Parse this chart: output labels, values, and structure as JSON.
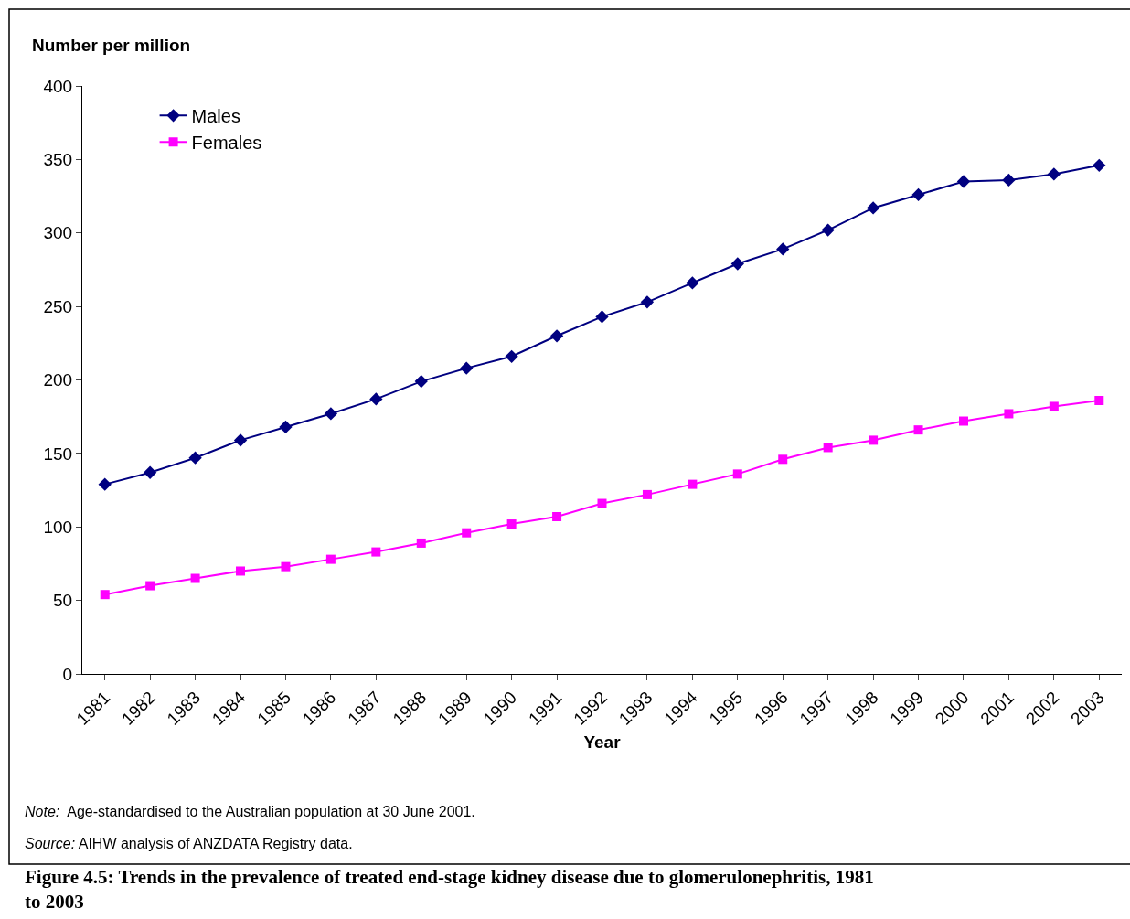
{
  "chart_data": {
    "type": "line",
    "title": "Figure 4.5: Trends in the prevalence of treated end-stage kidney disease due to glomerulonephritis, 1981 to 2003",
    "xlabel": "Year",
    "ylabel": "Number per million",
    "categories": [
      "1981",
      "1982",
      "1983",
      "1984",
      "1985",
      "1986",
      "1987",
      "1988",
      "1989",
      "1990",
      "1991",
      "1992",
      "1993",
      "1994",
      "1995",
      "1996",
      "1997",
      "1998",
      "1999",
      "2000",
      "2001",
      "2002",
      "2003"
    ],
    "series": [
      {
        "name": "Males",
        "color": "#000080",
        "marker": "diamond",
        "values": [
          129,
          137,
          147,
          159,
          168,
          177,
          187,
          199,
          208,
          216,
          230,
          243,
          253,
          266,
          279,
          289,
          302,
          317,
          326,
          335,
          336,
          340,
          346
        ]
      },
      {
        "name": "Females",
        "color": "#ff00ff",
        "marker": "square",
        "values": [
          54,
          60,
          65,
          70,
          73,
          78,
          83,
          89,
          96,
          102,
          107,
          116,
          122,
          129,
          136,
          146,
          154,
          159,
          166,
          172,
          177,
          182,
          186
        ]
      }
    ],
    "ylim": [
      0,
      400
    ],
    "yticks": [
      0,
      50,
      100,
      150,
      200,
      250,
      300,
      350,
      400
    ],
    "grid": false,
    "legend": "top left",
    "line_style": "solid",
    "annotations": [
      "Note:  Age-standardised to the Australian population at 30 June 2001.",
      "Source: AIHW analysis of ANZDATA Registry data."
    ]
  }
}
